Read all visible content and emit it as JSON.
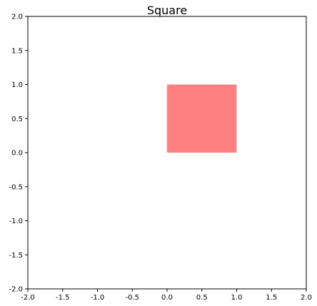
{
  "chart_data": {
    "type": "area",
    "title": "Square",
    "xlabel": "",
    "ylabel": "",
    "xlim": [
      -2.0,
      2.0
    ],
    "ylim": [
      -2.0,
      2.0
    ],
    "xticks": [
      "-2.0",
      "-1.5",
      "-1.0",
      "-0.5",
      "0.0",
      "0.5",
      "1.0",
      "1.5",
      "2.0"
    ],
    "yticks": [
      "2.0",
      "1.5",
      "1.0",
      "0.5",
      "0.0",
      "-0.5",
      "-1.0",
      "-1.5",
      "-2.0"
    ],
    "grid": false,
    "shapes": [
      {
        "kind": "rectangle",
        "x": [
          0.0,
          1.0
        ],
        "y": [
          0.0,
          1.0
        ],
        "color": "#ff8080"
      }
    ]
  }
}
